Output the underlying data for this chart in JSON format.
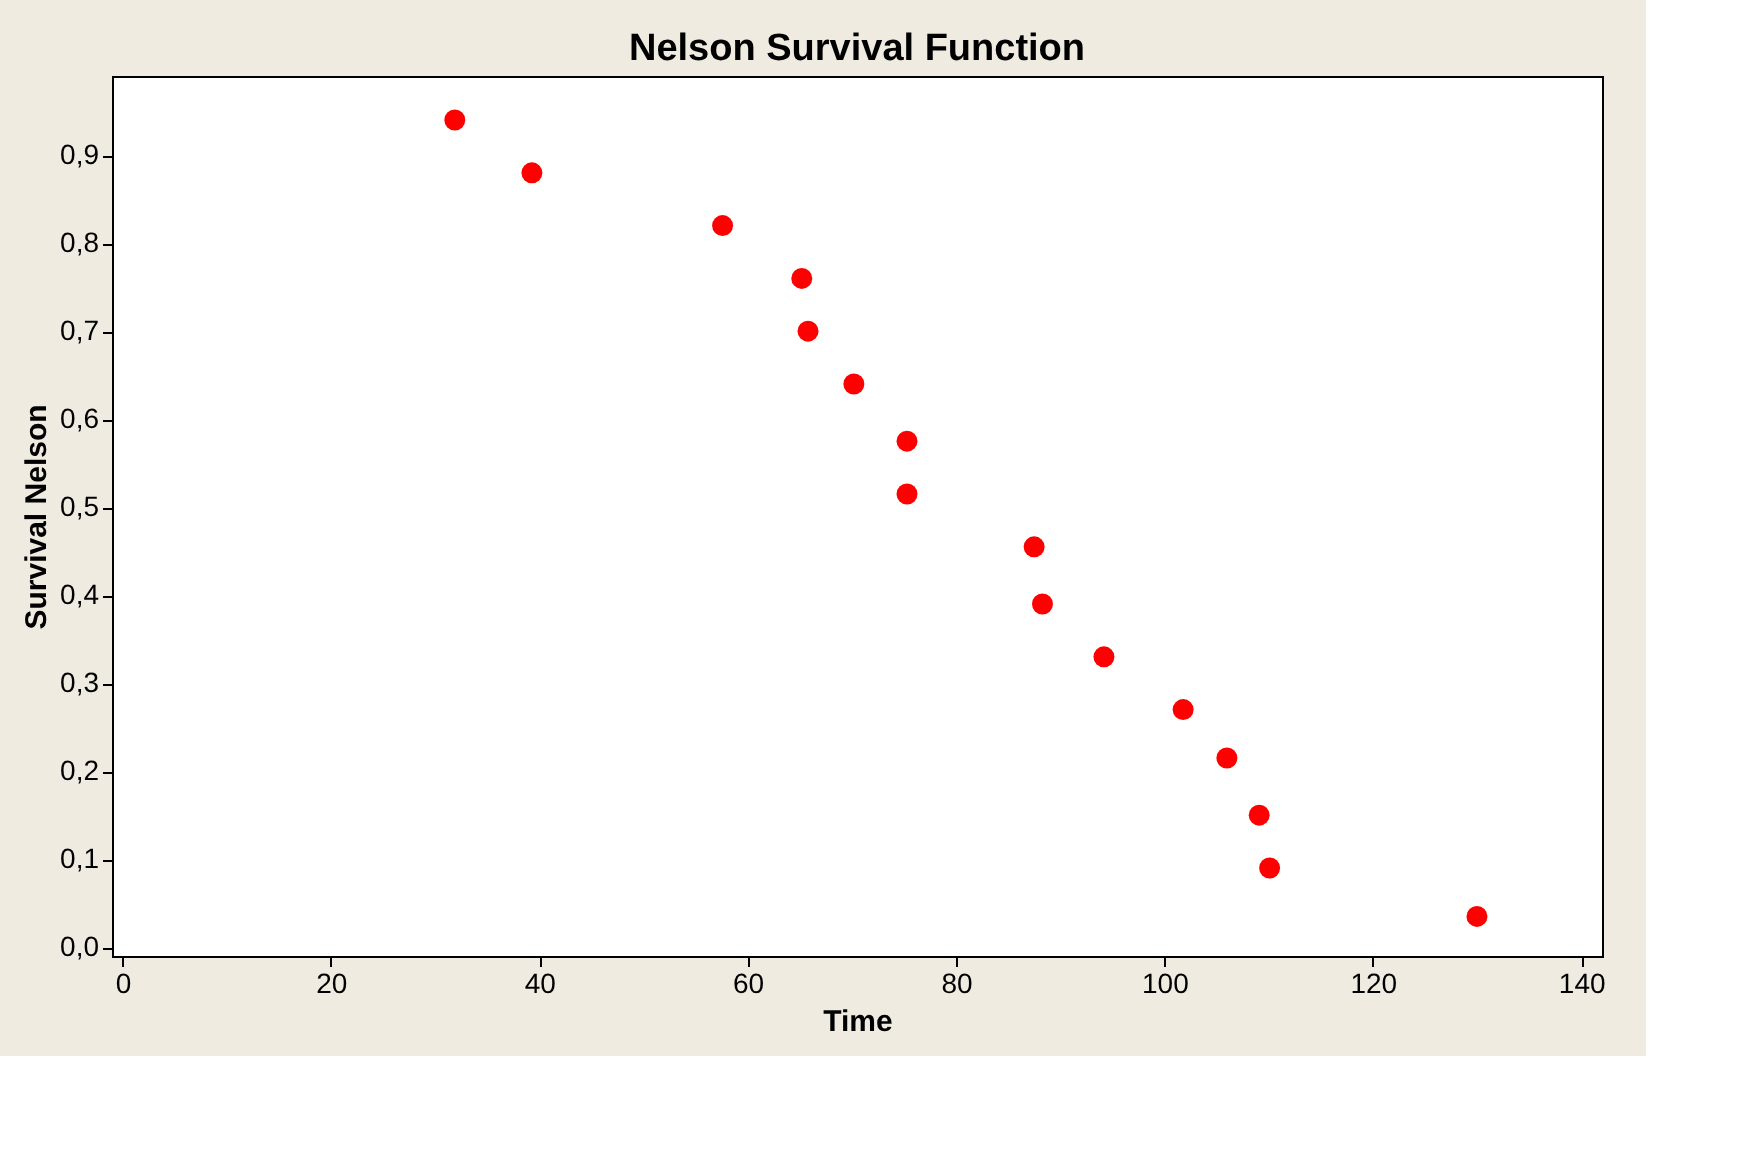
{
  "chart_data": {
    "type": "scatter",
    "title": "Nelson Survival Function",
    "xlabel": "Time",
    "ylabel": "Survival Nelson",
    "x": [
      31.9,
      39.3,
      57.6,
      65.2,
      65.8,
      70.2,
      75.3,
      75.3,
      87.5,
      88.3,
      94.2,
      101.8,
      106.0,
      109.1,
      110.1,
      130.0
    ],
    "series": [
      {
        "color": "#ff0000",
        "values": [
          0.94,
          0.88,
          0.82,
          0.76,
          0.7,
          0.64,
          0.575,
          0.515,
          0.455,
          0.39,
          0.33,
          0.27,
          0.215,
          0.15,
          0.09,
          0.035
        ]
      }
    ],
    "xlim": [
      -1,
      142
    ],
    "ylim": [
      -0.01,
      0.99
    ],
    "xticks": [
      0,
      20,
      40,
      60,
      80,
      100,
      120,
      140
    ],
    "yticks": [
      {
        "value": 0,
        "label": "0,0"
      },
      {
        "value": 0.1,
        "label": "0,1"
      },
      {
        "value": 0.2,
        "label": "0,2"
      },
      {
        "value": 0.3,
        "label": "0,3"
      },
      {
        "value": 0.4,
        "label": "0,4"
      },
      {
        "value": 0.5,
        "label": "0,5"
      },
      {
        "value": 0.6,
        "label": "0,6"
      },
      {
        "value": 0.7,
        "label": "0,7"
      },
      {
        "value": 0.8,
        "label": "0,8"
      },
      {
        "value": 0.9,
        "label": "0,9"
      }
    ],
    "grid": false,
    "marker": "circle"
  }
}
